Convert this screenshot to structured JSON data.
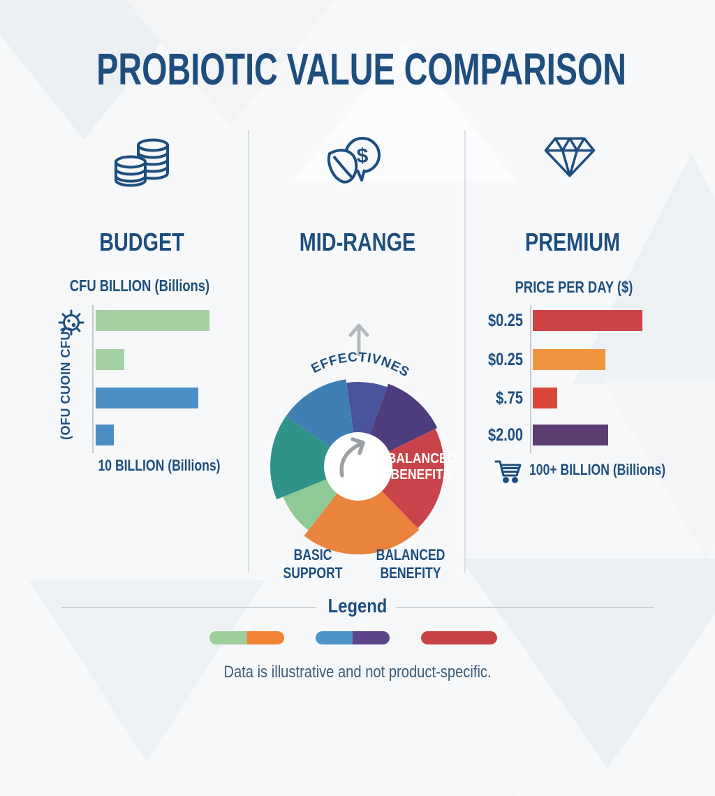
{
  "title": "PROBIOTIC VALUE COMPARISON",
  "columns": {
    "budget": "BUDGET",
    "midrange": "MID-RANGE",
    "premium": "PREMIUM"
  },
  "icons": {
    "budget": "coin-stacks-icon",
    "midrange": "leaf-dollar-coin-icon",
    "midrange_dollar_sign": "$",
    "premium": "diamond-icon",
    "budget_row": "bacteria-icon",
    "midrange_arrow": "up-arrow-icon",
    "pie_center": "curved-growth-arrow-icon",
    "premium_caption": "shopping-cart-icon"
  },
  "chart_data": [
    {
      "type": "bar",
      "column": "BUDGET",
      "orientation": "horizontal",
      "title": "CFU BILLION (Billions)",
      "ylabel": "(OFU CUOIN CFU)",
      "xlabel": "10 BILLION (Billions)",
      "values_note": "bars unlabeled; values are % of longest bar",
      "values": [
        100,
        25,
        90,
        16
      ],
      "colors": [
        "#a3d0a0",
        "#a3d0a0",
        "#4a8fc3",
        "#4a8fc3"
      ]
    },
    {
      "type": "pie",
      "column": "MID-RANGE",
      "title": "EFFECTIVNESS",
      "overlay_label": "BALANCED\nBENEFITS",
      "label_left": "BASIC\nSUPPORT",
      "label_right": "BALANCED\nBENEFITY",
      "donut_hole": true,
      "segments_note": "color-wheel wedges, angles clockwise from 12 o'clock",
      "segments": [
        {
          "color": "#4a549c",
          "start": 352,
          "end": 380,
          "r": 121
        },
        {
          "color": "#4e3d7c",
          "start": 20,
          "end": 64,
          "r": 126
        },
        {
          "color": "#c9444a",
          "start": 64,
          "end": 136,
          "r": 123
        },
        {
          "color": "#ea843c",
          "start": 136,
          "end": 218,
          "r": 126
        },
        {
          "color": "#8fc996",
          "start": 218,
          "end": 248,
          "r": 116
        },
        {
          "color": "#2f938a",
          "start": 248,
          "end": 305,
          "r": 126
        },
        {
          "color": "#3f7fb4",
          "start": 305,
          "end": 352,
          "r": 126
        }
      ]
    },
    {
      "type": "bar",
      "column": "PREMIUM",
      "orientation": "horizontal",
      "title": "PRICE PER DAY ($)",
      "xlabel": "100+ BILLION (Billions)",
      "categories": [
        "$0.25",
        "$0.25",
        "$.75",
        "$2.00"
      ],
      "values_note": "values are % of longest bar",
      "values": [
        100,
        66,
        22,
        69
      ],
      "colors": [
        "#cc4445",
        "#f0943e",
        "#d9473e",
        "#5b3d71"
      ]
    }
  ],
  "legend": {
    "title": "Legend",
    "pills": [
      {
        "colors": [
          "#9ccf9a",
          "#f08434"
        ]
      },
      {
        "colors": [
          "#4b94c8",
          "#5b4488"
        ]
      },
      {
        "colors": [
          "#c84343"
        ]
      }
    ]
  },
  "footnote": "Data is illustrative and not product-specific.",
  "palette": {
    "heading": "#1d4e7e",
    "background": "#f7f8f9",
    "divider": "#dbdee1",
    "axis": "#c6cacd",
    "muted_arrow": "#b7babc"
  }
}
